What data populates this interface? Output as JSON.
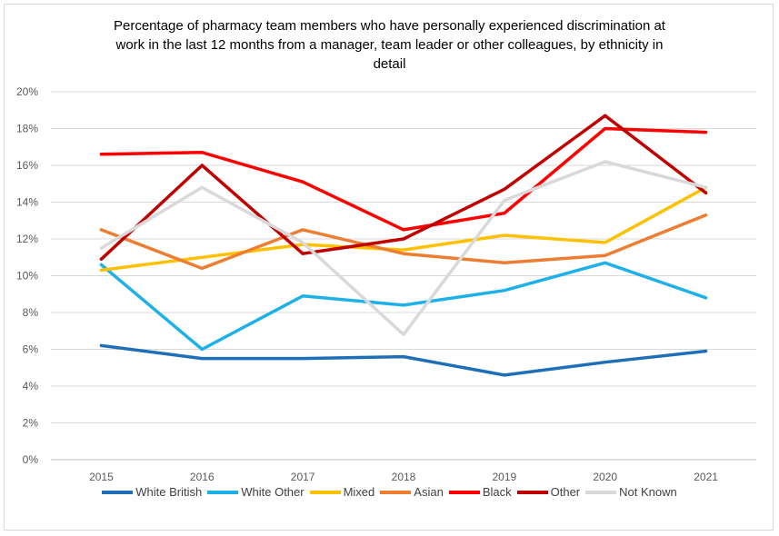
{
  "chart_data": {
    "type": "line",
    "title_lines": [
      "Percentage of pharmacy team members who have personally experienced discrimination at",
      "work in the last 12 months from a manager, team leader or other colleagues, by ethnicity in",
      "detail"
    ],
    "x": [
      "2015",
      "2016",
      "2017",
      "2018",
      "2019",
      "2020",
      "2021"
    ],
    "yticks": [
      "0%",
      "2%",
      "4%",
      "6%",
      "8%",
      "10%",
      "12%",
      "14%",
      "16%",
      "18%",
      "20%"
    ],
    "ylim": [
      0,
      20
    ],
    "grid": true,
    "legend_position": "bottom",
    "series": [
      {
        "name": "White British",
        "color": "#1F6FB8",
        "values": [
          6.2,
          5.5,
          5.5,
          5.6,
          4.6,
          5.3,
          5.9
        ]
      },
      {
        "name": "White Other",
        "color": "#1EB0E8",
        "values": [
          10.6,
          6.0,
          8.9,
          8.4,
          9.2,
          10.7,
          8.8
        ]
      },
      {
        "name": "Mixed",
        "color": "#FFC000",
        "values": [
          10.3,
          11.0,
          11.7,
          11.4,
          12.2,
          11.8,
          14.8
        ]
      },
      {
        "name": "Asian",
        "color": "#ED7D31",
        "values": [
          12.5,
          10.4,
          12.5,
          11.2,
          10.7,
          11.1,
          13.3
        ]
      },
      {
        "name": "Black",
        "color": "#FF0000",
        "values": [
          16.6,
          16.7,
          15.1,
          12.5,
          13.4,
          18.0,
          17.8
        ]
      },
      {
        "name": "Other",
        "color": "#C00000",
        "values": [
          10.9,
          16.0,
          11.2,
          12.0,
          14.7,
          18.7,
          14.5
        ]
      },
      {
        "name": "Not Known",
        "color": "#D9D9D9",
        "values": [
          11.5,
          14.8,
          11.8,
          6.8,
          14.1,
          16.2,
          14.8
        ]
      }
    ]
  }
}
